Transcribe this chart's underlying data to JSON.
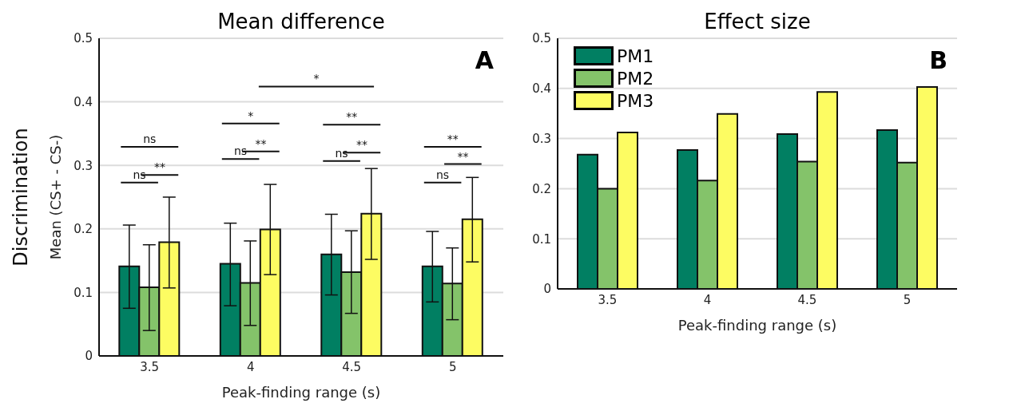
{
  "chart_data": [
    {
      "type": "bar",
      "title": "Mean difference",
      "xlabel": "Peak-finding range (s)",
      "ylabel": "Mean (CS+ - CS-)",
      "categories": [
        "3.5",
        "4",
        "4.5",
        "5"
      ],
      "series": [
        {
          "color": "#017f62",
          "values": [
            0.141,
            0.145,
            0.16,
            0.141
          ],
          "errors": [
            [
              0.075,
              0.206
            ],
            [
              0.079,
              0.209
            ],
            [
              0.096,
              0.223
            ],
            [
              0.085,
              0.196
            ]
          ]
        },
        {
          "color": "#84c36a",
          "values": [
            0.108,
            0.115,
            0.132,
            0.114
          ],
          "errors": [
            [
              0.04,
              0.175
            ],
            [
              0.048,
              0.181
            ],
            [
              0.067,
              0.197
            ],
            [
              0.057,
              0.17
            ]
          ]
        },
        {
          "color": "#fdfc62",
          "values": [
            0.179,
            0.199,
            0.224,
            0.215
          ],
          "errors": [
            [
              0.107,
              0.25
            ],
            [
              0.128,
              0.27
            ],
            [
              0.152,
              0.295
            ],
            [
              0.148,
              0.281
            ]
          ]
        }
      ],
      "ylim": [
        0,
        0.5
      ],
      "yticks": [
        0,
        0.1,
        0.2,
        0.3,
        0.4,
        0.5
      ],
      "grid": "y",
      "legend": false,
      "annotations": [
        "Discrimination",
        "A",
        "ns",
        "**",
        "ns",
        "ns",
        "**",
        "*",
        "*",
        "ns",
        "**",
        "**",
        "ns",
        "**",
        "**"
      ]
    },
    {
      "type": "bar",
      "title": "Effect size",
      "xlabel": "Peak-finding range (s)",
      "categories": [
        "3.5",
        "4",
        "4.5",
        "5"
      ],
      "series": [
        {
          "name": "PM1",
          "color": "#017f62",
          "values": [
            0.268,
            0.277,
            0.309,
            0.317
          ]
        },
        {
          "name": "PM2",
          "color": "#84c36a",
          "values": [
            0.2,
            0.216,
            0.254,
            0.252
          ]
        },
        {
          "name": "PM3",
          "color": "#fdfc62",
          "values": [
            0.312,
            0.349,
            0.393,
            0.403
          ]
        }
      ],
      "ylim": [
        0,
        0.5
      ],
      "yticks": [
        0,
        0.1,
        0.2,
        0.3,
        0.4,
        0.5
      ],
      "grid": "y",
      "legend": "top left",
      "annotations": [
        "B"
      ]
    }
  ]
}
